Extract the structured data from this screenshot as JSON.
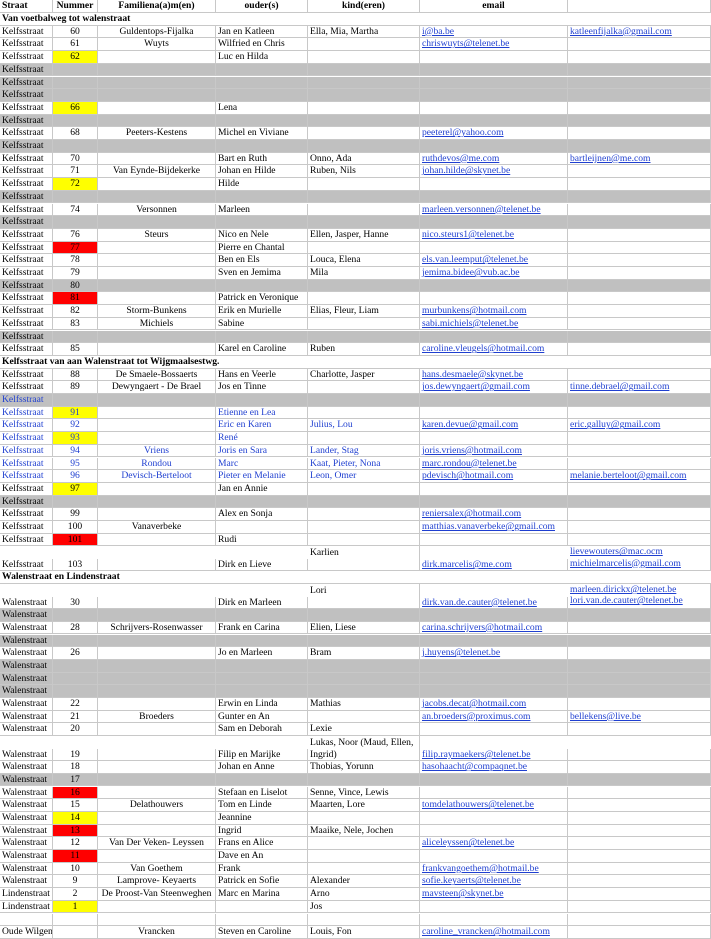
{
  "columns": [
    "Straat",
    "Nummer",
    "Familiena(a)m(en)",
    "ouder(s)",
    "kind(eren)",
    "email"
  ],
  "sections": [
    {
      "title": "Van voetbalweg tot walenstraat",
      "rows": [
        {
          "straat": "Kelfsstraat",
          "nummer": "60",
          "familie": "Guldentops-Fijalka",
          "ouders": "Jan en Katleen",
          "kinderen": "Ella, Mia, Martha",
          "email": "i@ba.be",
          "email2": "katleenfijalka@gmail.com"
        },
        {
          "straat": "Kelfsstraat",
          "nummer": "61",
          "familie": "Wuyts",
          "ouders": "Wilfried en Chris",
          "email": "chriswuyts@telenet.be"
        },
        {
          "straat": "Kelfsstraat",
          "nummer": "62",
          "hl": "yellow",
          "ouders": "Luc en Hilda"
        },
        {
          "straat": "Kelfsstraat",
          "gray": true
        },
        {
          "straat": "Kelfsstraat",
          "gray": true
        },
        {
          "straat": "Kelfsstraat",
          "gray": true
        },
        {
          "straat": "Kelfsstraat",
          "nummer": "66",
          "hl": "yellow",
          "ouders": "Lena"
        },
        {
          "straat": "Kelfsstraat",
          "gray": true
        },
        {
          "straat": "Kelfsstraat",
          "nummer": "68",
          "familie": "Peeters-Kestens",
          "ouders": "Michel en Viviane",
          "email": "peeterel@yahoo.com"
        },
        {
          "straat": "Kelfsstraat",
          "gray": true
        },
        {
          "straat": "Kelfsstraat",
          "nummer": "70",
          "ouders": "Bart en Ruth",
          "kinderen": "Onno, Ada",
          "email": "ruthdevos@me.com",
          "email2": "bartleijnen@me.com"
        },
        {
          "straat": "Kelfsstraat",
          "nummer": "71",
          "familie": "Van Eynde-Bijdekerke",
          "ouders": "Johan en Hilde",
          "kinderen": "Ruben, Nils",
          "email": "johan.hilde@skynet.be"
        },
        {
          "straat": "Kelfsstraat",
          "nummer": "72",
          "hl": "yellow",
          "ouders": "Hilde"
        },
        {
          "straat": "Kelfsstraat",
          "gray": true
        },
        {
          "straat": "Kelfsstraat",
          "nummer": "74",
          "familie": "Versonnen",
          "ouders": "Marleen",
          "email": "marleen.versonnen@telenet.be"
        },
        {
          "straat": "Kelfsstraat",
          "gray": true
        },
        {
          "straat": "Kelfsstraat",
          "nummer": "76",
          "familie": "Steurs",
          "ouders": "Nico en Nele",
          "kinderen": "Ellen, Jasper, Hanne",
          "email": "nico.steurs1@telenet.be"
        },
        {
          "straat": "Kelfsstraat",
          "nummer": "77",
          "hl": "red",
          "ouders": "Pierre en Chantal"
        },
        {
          "straat": "Kelfsstraat",
          "nummer": "78",
          "ouders": "Ben en Els",
          "kinderen": "Louca, Elena",
          "email": "els.van.leemput@telenet.be"
        },
        {
          "straat": "Kelfsstraat",
          "nummer": "79",
          "ouders": "Sven en Jemima",
          "kinderen": "Mila",
          "email": "jemima.bidee@vub.ac.be"
        },
        {
          "straat": "Kelfsstraat",
          "nummer": "80",
          "gray": true
        },
        {
          "straat": "Kelfsstraat",
          "nummer": "81",
          "hl": "red",
          "ouders": "Patrick en Veronique"
        },
        {
          "straat": "Kelfsstraat",
          "nummer": "82",
          "familie": "Storm-Bunkens",
          "ouders": "Erik en Murielle",
          "kinderen": "Elias, Fleur, Liam",
          "email": "murbunkens@hotmail.com"
        },
        {
          "straat": "Kelfsstraat",
          "nummer": "83",
          "familie": "Michiels",
          "ouders": "Sabine",
          "email": "sabi.michiels@telenet.be"
        },
        {
          "straat": "Kelfsstraat",
          "gray": true
        },
        {
          "straat": "Kelfsstraat",
          "nummer": "85",
          "ouders": "Karel en Caroline",
          "kinderen": "Ruben",
          "email": "caroline.vleugels@hotmail.com"
        }
      ]
    },
    {
      "title": "Kelfsstraat van aan Walenstraat tot Wijgmaalsestwg.",
      "rows": [
        {
          "straat": "Kelfsstraat",
          "nummer": "88",
          "familie": "De Smaele-Bossaerts",
          "ouders": "Hans en Veerle",
          "kinderen": "Charlotte, Jasper",
          "email": "hans.desmaele@skynet.be"
        },
        {
          "straat": "Kelfsstraat",
          "nummer": "89",
          "familie": "Dewyngaert - De Brael",
          "ouders": "Jos en Tinne",
          "email": "jos.dewyngaert@gmail.com",
          "email2": "tinne.debrael@gmail.com"
        },
        {
          "straat": "Kelfsstraat",
          "blue": true,
          "gray": true
        },
        {
          "straat": "Kelfsstraat",
          "nummer": "91",
          "hl": "yellow",
          "blue": true,
          "ouders": "Etienne en Lea"
        },
        {
          "straat": "Kelfsstraat",
          "nummer": "92",
          "blue": true,
          "ouders": "Eric en Karen",
          "kinderen": "Julius, Lou",
          "email": "karen.devue@gmail.com",
          "email2": "eric.galluy@gmail.com"
        },
        {
          "straat": "Kelfsstraat",
          "nummer": "93",
          "hl": "yellow",
          "blue": true,
          "ouders": "René"
        },
        {
          "straat": "Kelfsstraat",
          "nummer": "94",
          "blue": true,
          "familie": "Vriens",
          "ouders": "Joris en Sara",
          "kinderen": "Lander, Stag",
          "email": "joris.vriens@hotmail.com"
        },
        {
          "straat": "Kelfsstraat",
          "nummer": "95",
          "blue": true,
          "familie": "Rondou",
          "ouders": "Marc",
          "kinderen": "Kaat, Pieter, Nona",
          "email": "marc.rondou@telenet.be"
        },
        {
          "straat": "Kelfsstraat",
          "nummer": "96",
          "blue": true,
          "familie": "Devisch-Berteloot",
          "ouders": "Pieter en Melanie",
          "kinderen": "Leon, Omer",
          "email": "pdevisch@hotmail.com",
          "email2": "melanie.berteloot@gmail.com"
        },
        {
          "straat": "Kelfsstraat",
          "nummer": "97",
          "hl": "yellow",
          "ouders": "Jan en Annie"
        },
        {
          "straat": "Kelfsstraat",
          "gray": true
        },
        {
          "straat": "Kelfsstraat",
          "nummer": "99",
          "ouders": "Alex en Sonja",
          "email": "reniersalex@hotmail.com"
        },
        {
          "straat": "Kelfsstraat",
          "nummer": "100",
          "familie": "Vanaverbeke",
          "email": "matthias.vanaverbeke@gmail.com"
        },
        {
          "straat": "Kelfsstraat",
          "nummer": "101",
          "hl": "red",
          "ouders": "Rudi"
        },
        {
          "straat": "Kelfsstraat",
          "nummer": "103",
          "ouders": "Dirk en Lieve",
          "kinderen": "Karlien",
          "email": "dirk.marcelis@me.com",
          "email2": "lievewouters@mac.ocm",
          "email3": "michielmarcelis@gmail.com"
        }
      ]
    },
    {
      "title": "Walenstraat en Lindenstraat",
      "rows": [
        {
          "straat": "Walenstraat",
          "nummer": "30",
          "ouders": "Dirk en Marleen",
          "kinderen": "Lori",
          "email": "dirk.van.de.cauter@telenet.be",
          "email2": "marleen.dirickx@telenet.be",
          "email3": "lori.van.de.cauter@telenet.be"
        },
        {
          "straat": "Walenstraat",
          "gray": true
        },
        {
          "straat": "Walenstraat",
          "nummer": "28",
          "familie": "Schrijvers-Rosenwasser",
          "ouders": "Frank en Carina",
          "kinderen": "Elien, Liese",
          "email": "carina.schrijvers@hotmail.com"
        },
        {
          "straat": "Walenstraat",
          "gray": true
        },
        {
          "straat": "Walenstraat",
          "nummer": "26",
          "ouders": "Jo en Marleen",
          "kinderen": "Bram",
          "email": "j.huyens@telenet.be"
        },
        {
          "straat": "Walenstraat",
          "gray": true
        },
        {
          "straat": "Walenstraat",
          "gray": true
        },
        {
          "straat": "Walenstraat",
          "gray": true
        },
        {
          "straat": "Walenstraat",
          "nummer": "22",
          "ouders": "Erwin en Linda",
          "kinderen": "Mathias",
          "email": "jacobs.decat@hotmail.com"
        },
        {
          "straat": "Walenstraat",
          "nummer": "21",
          "familie": "Broeders",
          "ouders": "Gunter en An",
          "email": "an.broeders@proximus.com",
          "email2": "bellekens@live.be"
        },
        {
          "straat": "Walenstraat",
          "nummer": "20",
          "ouders": "Sam en Deborah",
          "kinderen": "Lexie"
        },
        {
          "straat": "Walenstraat",
          "nummer": "19",
          "ouders": "Filip en Marijke",
          "kinderen": "Lukas, Noor (Maud, Ellen, Ingrid)",
          "email": "filip.raymaekers@telenet.be"
        },
        {
          "straat": "Walenstraat",
          "nummer": "18",
          "ouders": "Johan en Anne",
          "kinderen": "Thobias, Yorunn",
          "email": "hasohaacht@compaqnet.be"
        },
        {
          "straat": "Walenstraat",
          "nummer": "17",
          "gray": true
        },
        {
          "straat": "Walenstraat",
          "nummer": "16",
          "hl": "red",
          "ouders": "Stefaan en Liselot",
          "kinderen": "Senne, Vince, Lewis"
        },
        {
          "straat": "Walenstraat",
          "nummer": "15",
          "familie": "Delathouwers",
          "ouders": "Tom en Linde",
          "kinderen": "Maarten, Lore",
          "email": "tomdelathouwers@telenet.be"
        },
        {
          "straat": "Walenstraat",
          "nummer": "14",
          "hl": "yellow",
          "ouders": "Jeannine"
        },
        {
          "straat": "Walenstraat",
          "nummer": "13",
          "hl": "red",
          "ouders": "Ingrid",
          "kinderen": "Maaike, Nele, Jochen"
        },
        {
          "straat": "Walenstraat",
          "nummer": "12",
          "familie": "Van Der Veken- Leyssen",
          "ouders": "Frans en Alice",
          "email": "aliceleyssen@telenet.be"
        },
        {
          "straat": "Walenstraat",
          "nummer": "11",
          "hl": "red",
          "ouders": "Dave en An"
        },
        {
          "straat": "Walenstraat",
          "nummer": "10",
          "familie": "Van Goethem",
          "ouders": "Frank",
          "email": "frankvangoethem@hotmail.be"
        },
        {
          "straat": "Walenstraat",
          "nummer": "9",
          "familie": "Lamprove- Keyaerts",
          "ouders": "Patrick en Sofie",
          "kinderen": "Alexander",
          "email": "sofie.keyaerts@telenet.be"
        },
        {
          "straat": "Lindenstraat",
          "nummer": "2",
          "familie": "De Proost-Van Steenweghen",
          "ouders": "Marc en Marina",
          "kinderen": "Arno",
          "email": "mavsteen@skynet.be"
        },
        {
          "straat": "Lindenstraat",
          "nummer": "1",
          "hl": "yellow",
          "kinderen": "Jos"
        },
        {},
        {
          "straat": "Oude Wilgen",
          "familie": "Vrancken",
          "ouders": "Steven en Caroline",
          "kinderen": "Louis, Fon",
          "email": "caroline_vrancken@hotmail.com"
        }
      ]
    }
  ]
}
